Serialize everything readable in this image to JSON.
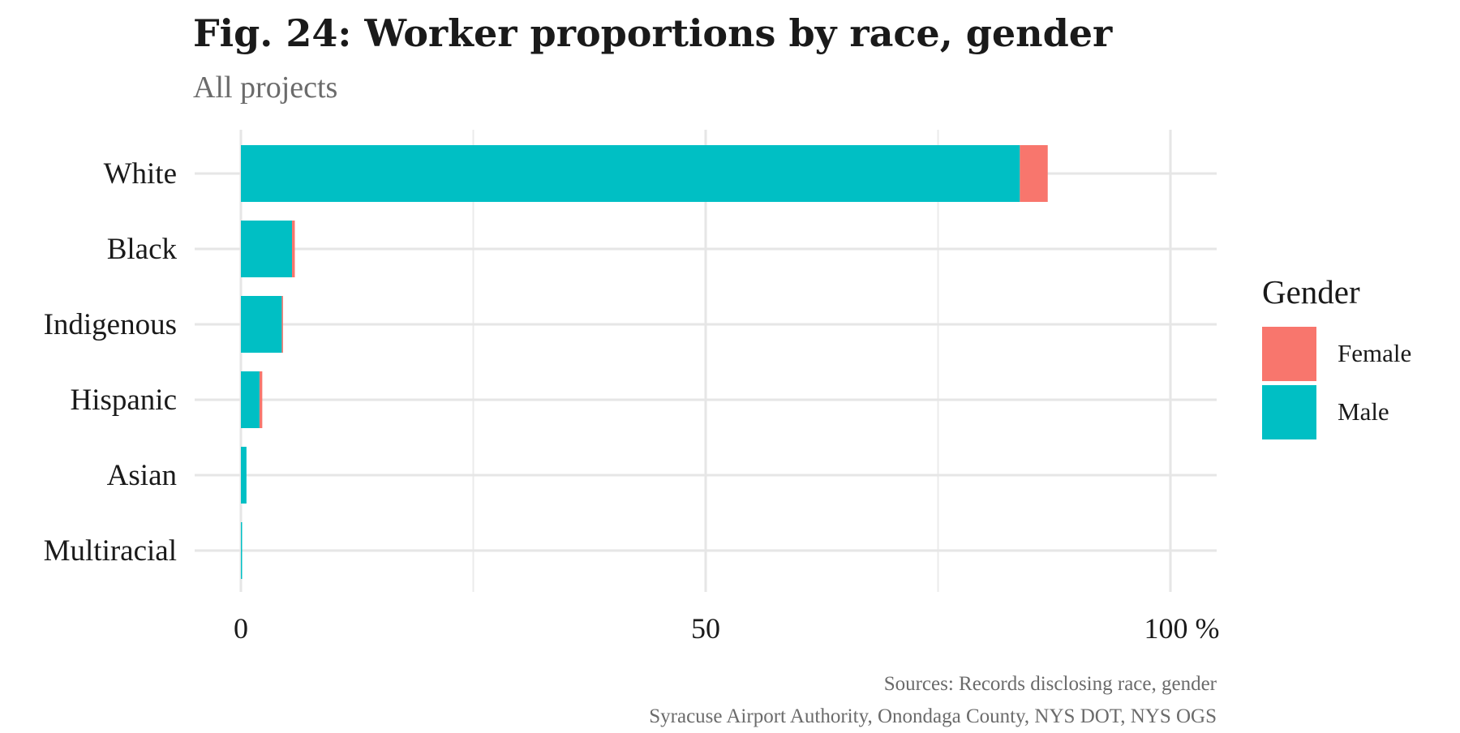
{
  "chart_data": {
    "type": "bar",
    "orientation": "horizontal",
    "stacked": true,
    "title": "Fig. 24: Worker proportions by race, gender",
    "subtitle": "All projects",
    "categories": [
      "White",
      "Black",
      "Indigenous",
      "Hispanic",
      "Asian",
      "Multiracial"
    ],
    "series": [
      {
        "name": "Male",
        "color": "#00BFC4",
        "values": [
          83.8,
          5.5,
          4.4,
          2.0,
          0.6,
          0.1
        ]
      },
      {
        "name": "Female",
        "color": "#F8766D",
        "values": [
          3.0,
          0.3,
          0.1,
          0.3,
          0.0,
          0.0
        ]
      }
    ],
    "xlim": [
      0,
      100
    ],
    "x_ticks": [
      {
        "value": 0,
        "label": "0"
      },
      {
        "value": 50,
        "label": "50"
      },
      {
        "value": 100,
        "label": "100 %"
      }
    ],
    "xlabel": "",
    "ylabel": "",
    "grid": true,
    "legend": {
      "title": "Gender",
      "position": "right",
      "entries": [
        {
          "label": "Female",
          "color": "#F8766D"
        },
        {
          "label": "Male",
          "color": "#00BFC4"
        }
      ]
    },
    "caption": [
      "Sources: Records disclosing race, gender",
      "Syracuse Airport Authority, Onondaga County, NYS DOT, NYS OGS"
    ]
  }
}
